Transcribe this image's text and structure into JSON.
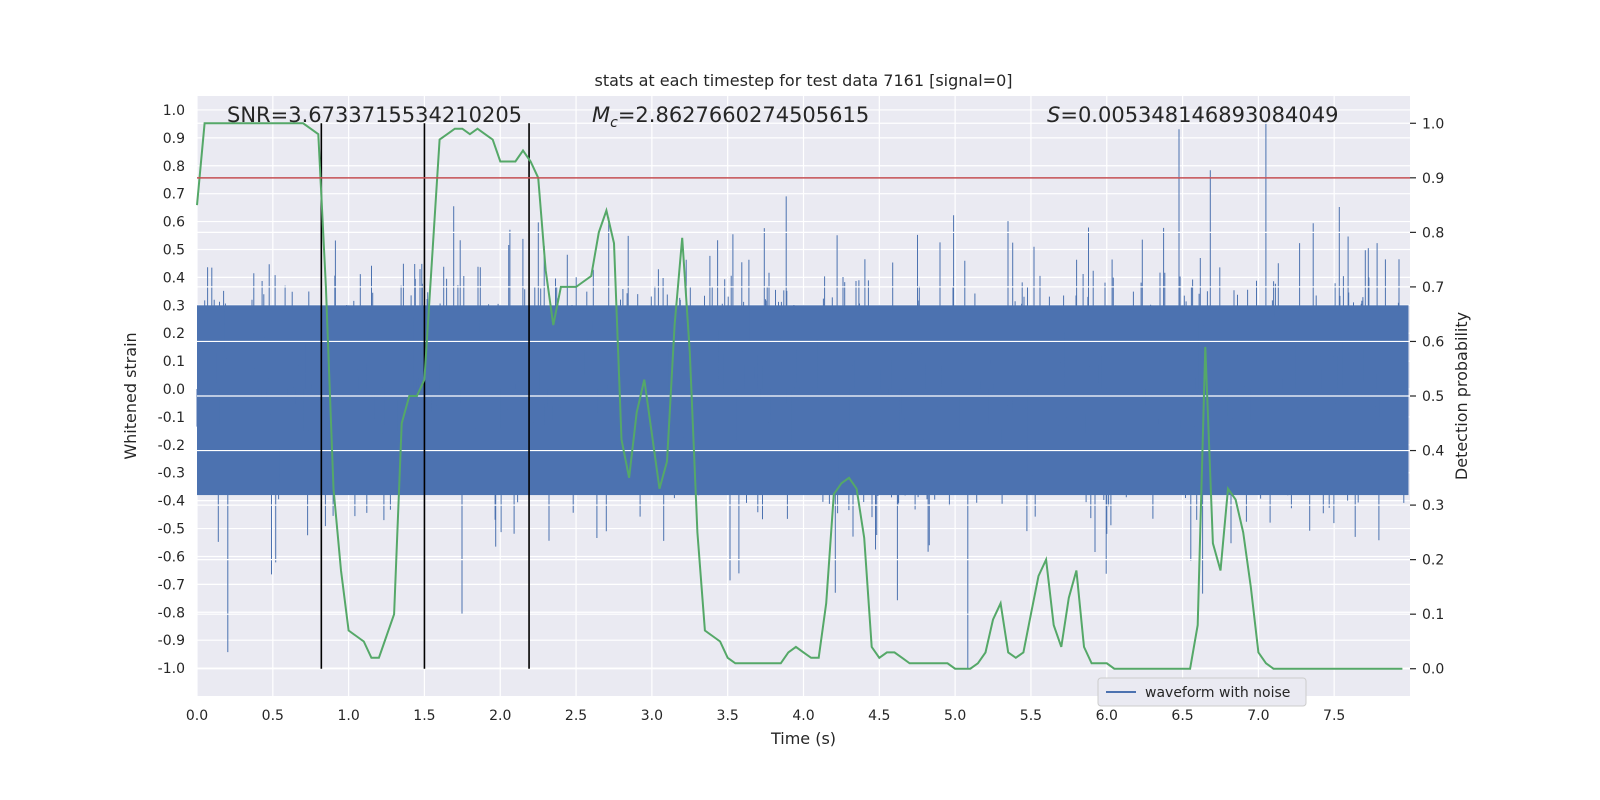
{
  "chart_data": {
    "type": "line",
    "title": "stats at each timestep for test data 7161 [signal=0]",
    "xlabel": "Time (s)",
    "ylabel_left": "Whitened strain",
    "ylabel_right": "Detection probability",
    "xlim": [
      0.0,
      8.0
    ],
    "ylim_left": [
      -1.1,
      1.05
    ],
    "ylim_right": [
      -0.05,
      1.05
    ],
    "x_ticks": [
      "0.0",
      "0.5",
      "1.0",
      "1.5",
      "2.0",
      "2.5",
      "3.0",
      "3.5",
      "4.0",
      "4.5",
      "5.0",
      "5.5",
      "6.0",
      "6.5",
      "7.0",
      "7.5"
    ],
    "x_tick_values": [
      0.0,
      0.5,
      1.0,
      1.5,
      2.0,
      2.5,
      3.0,
      3.5,
      4.0,
      4.5,
      5.0,
      5.5,
      6.0,
      6.5,
      7.0,
      7.5
    ],
    "y_left_ticks": [
      "1.0",
      "0.9",
      "0.8",
      "0.7",
      "0.6",
      "0.5",
      "0.4",
      "0.3",
      "0.2",
      "0.1",
      "0.0",
      "-0.1",
      "-0.2",
      "-0.3",
      "-0.4",
      "-0.5",
      "-0.6",
      "-0.7",
      "-0.8",
      "-0.9",
      "-1.0"
    ],
    "y_left_tick_values": [
      1.0,
      0.9,
      0.8,
      0.7,
      0.6,
      0.5,
      0.4,
      0.3,
      0.2,
      0.1,
      0.0,
      -0.1,
      -0.2,
      -0.3,
      -0.4,
      -0.5,
      -0.6,
      -0.7,
      -0.8,
      -0.9,
      -1.0
    ],
    "y_right_ticks": [
      "1.0",
      "0.9",
      "0.8",
      "0.7",
      "0.6",
      "0.5",
      "0.4",
      "0.3",
      "0.2",
      "0.1",
      "0.0"
    ],
    "y_right_tick_values": [
      1.0,
      0.9,
      0.8,
      0.7,
      0.6,
      0.5,
      0.4,
      0.3,
      0.2,
      0.1,
      0.0
    ],
    "annotations": {
      "snr": "SNR=3.6733715534210205",
      "mc_symbol": "M",
      "mc_sub": "c",
      "mc_value": "=2.8627660274505615",
      "s_symbol": "S",
      "s_value": "=0.005348146893084049"
    },
    "threshold": {
      "value": 0.9,
      "axis": "right",
      "color": "#c44e52"
    },
    "vertical_lines": [
      0.82,
      1.5,
      2.19
    ],
    "detection_probability": {
      "name": "Detection probability",
      "color": "#55a868",
      "x": [
        0.0,
        0.05,
        0.1,
        0.15,
        0.2,
        0.25,
        0.3,
        0.35,
        0.4,
        0.45,
        0.5,
        0.55,
        0.6,
        0.65,
        0.7,
        0.75,
        0.8,
        0.85,
        0.9,
        0.95,
        1.0,
        1.05,
        1.1,
        1.15,
        1.2,
        1.25,
        1.3,
        1.35,
        1.4,
        1.45,
        1.5,
        1.55,
        1.6,
        1.65,
        1.7,
        1.75,
        1.8,
        1.85,
        1.9,
        1.95,
        2.0,
        2.05,
        2.1,
        2.15,
        2.2,
        2.25,
        2.3,
        2.35,
        2.4,
        2.45,
        2.5,
        2.55,
        2.6,
        2.65,
        2.7,
        2.75,
        2.8,
        2.85,
        2.9,
        2.95,
        3.0,
        3.05,
        3.1,
        3.15,
        3.2,
        3.25,
        3.3,
        3.35,
        3.4,
        3.45,
        3.5,
        3.55,
        3.6,
        3.65,
        3.7,
        3.75,
        3.8,
        3.85,
        3.9,
        3.95,
        4.0,
        4.05,
        4.1,
        4.15,
        4.2,
        4.25,
        4.3,
        4.35,
        4.4,
        4.45,
        4.5,
        4.55,
        4.6,
        4.65,
        4.7,
        4.75,
        4.8,
        4.85,
        4.9,
        4.95,
        5.0,
        5.05,
        5.1,
        5.15,
        5.2,
        5.25,
        5.3,
        5.35,
        5.4,
        5.45,
        5.5,
        5.55,
        5.6,
        5.65,
        5.7,
        5.75,
        5.8,
        5.85,
        5.9,
        5.95,
        6.0,
        6.05,
        6.1,
        6.15,
        6.2,
        6.25,
        6.3,
        6.35,
        6.4,
        6.45,
        6.5,
        6.55,
        6.6,
        6.65,
        6.7,
        6.75,
        6.8,
        6.85,
        6.9,
        6.95,
        7.0,
        7.05,
        7.1,
        7.15,
        7.2,
        7.25,
        7.3,
        7.35,
        7.4,
        7.45,
        7.5,
        7.55,
        7.6,
        7.65,
        7.7,
        7.75,
        7.8,
        7.85,
        7.9,
        7.95
      ],
      "y": [
        0.85,
        1.0,
        1.0,
        1.0,
        1.0,
        1.0,
        1.0,
        1.0,
        1.0,
        1.0,
        1.0,
        1.0,
        1.0,
        1.0,
        1.0,
        0.99,
        0.98,
        0.7,
        0.33,
        0.18,
        0.07,
        0.06,
        0.05,
        0.02,
        0.02,
        0.06,
        0.1,
        0.45,
        0.5,
        0.5,
        0.53,
        0.75,
        0.97,
        0.98,
        0.99,
        0.99,
        0.98,
        0.99,
        0.98,
        0.97,
        0.93,
        0.93,
        0.93,
        0.95,
        0.93,
        0.9,
        0.73,
        0.63,
        0.7,
        0.7,
        0.7,
        0.71,
        0.72,
        0.8,
        0.84,
        0.78,
        0.42,
        0.35,
        0.47,
        0.53,
        0.43,
        0.33,
        0.38,
        0.63,
        0.79,
        0.58,
        0.25,
        0.07,
        0.06,
        0.05,
        0.02,
        0.01,
        0.01,
        0.01,
        0.01,
        0.01,
        0.01,
        0.01,
        0.03,
        0.04,
        0.03,
        0.02,
        0.02,
        0.12,
        0.32,
        0.34,
        0.35,
        0.33,
        0.24,
        0.04,
        0.02,
        0.03,
        0.03,
        0.02,
        0.01,
        0.01,
        0.01,
        0.01,
        0.01,
        0.01,
        0.0,
        0.0,
        0.0,
        0.01,
        0.03,
        0.09,
        0.12,
        0.03,
        0.02,
        0.03,
        0.1,
        0.17,
        0.2,
        0.08,
        0.04,
        0.13,
        0.18,
        0.04,
        0.01,
        0.01,
        0.01,
        0.0,
        0.0,
        0.0,
        0.0,
        0.0,
        0.0,
        0.0,
        0.0,
        0.0,
        0.0,
        0.0,
        0.08,
        0.59,
        0.23,
        0.18,
        0.33,
        0.31,
        0.25,
        0.15,
        0.03,
        0.01,
        0.0,
        0.0,
        0.0,
        0.0,
        0.0,
        0.0,
        0.0,
        0.0,
        0.0,
        0.0,
        0.0,
        0.0,
        0.0,
        0.0,
        0.0,
        0.0,
        0.0,
        0.0
      ]
    },
    "waveform": {
      "name": "waveform with noise",
      "color": "#4c72b0",
      "samples": 2048,
      "rms": 0.22,
      "range": [
        -1.0,
        0.96
      ]
    },
    "legend": {
      "location": "lower-center-right",
      "entries": [
        "waveform with noise"
      ]
    },
    "grid": true
  }
}
